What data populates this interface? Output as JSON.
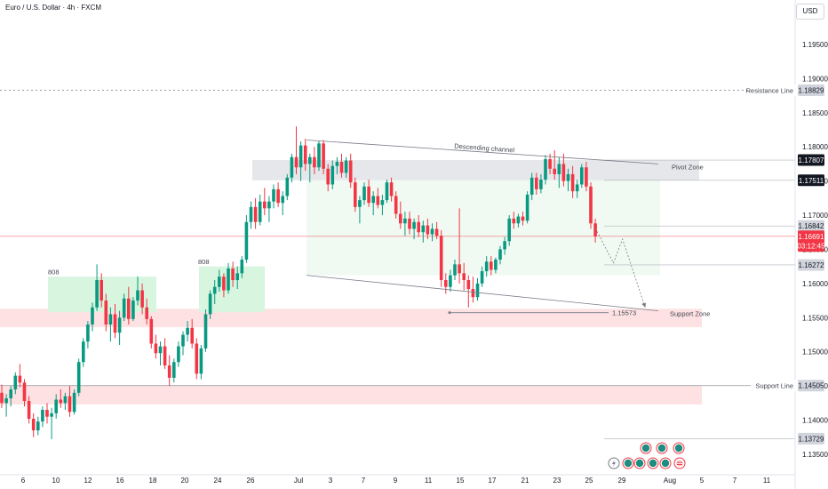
{
  "header": {
    "title": "Euro / U.S. Dollar · 4h · FXCM",
    "currency": "USD"
  },
  "chart_data": {
    "type": "candlestick",
    "x_ticks": [
      "6",
      "10",
      "12",
      "16",
      "18",
      "20",
      "24",
      "26",
      "Jul",
      "3",
      "7",
      "9",
      "11",
      "15",
      "17",
      "21",
      "23",
      "25",
      "29",
      "Aug",
      "5",
      "7",
      "11"
    ],
    "y_ticks": [
      "1.19500",
      "1.19000",
      "1.18500",
      "1.18000",
      "1.17500",
      "1.17000",
      "1.16500",
      "1.16000",
      "1.15500",
      "1.15000",
      "1.14500",
      "1.14000",
      "1.13500"
    ],
    "ylim": [
      1.132,
      1.2015
    ],
    "price_tags": [
      {
        "label": "Resistance Line",
        "value": "1.18829",
        "y": 1.18829,
        "style": "gray"
      },
      {
        "label": "",
        "value": "1.17807",
        "y": 1.17807,
        "style": "dark"
      },
      {
        "label": "",
        "value": "1.17511",
        "y": 1.17511,
        "style": "dark"
      },
      {
        "label": "",
        "value": "1.16842",
        "y": 1.16842,
        "style": "gray"
      },
      {
        "label": "",
        "value": "1.16691",
        "y": 1.16691,
        "style": "red"
      },
      {
        "label": "",
        "value": "03:12:45",
        "y": 1.1655,
        "style": "red"
      },
      {
        "label": "",
        "value": "1.16272",
        "y": 1.16272,
        "style": "gray"
      },
      {
        "label": "Support Line",
        "value": "1.14505",
        "y": 1.14505,
        "style": "gray"
      },
      {
        "label": "",
        "value": "1.13729",
        "y": 1.13729,
        "style": "gray"
      }
    ],
    "annotations": {
      "descending_channel": "Descending channel",
      "pivot_zone": "Pivot Zone",
      "support_zone": "Support Zone",
      "low_value": "1.15573",
      "box1": "808",
      "box2": "808"
    },
    "zones": {
      "pivot": [
        1.17511,
        1.17807
      ],
      "support_zone": [
        1.1536,
        1.1563
      ],
      "support_line_band": [
        1.1423,
        1.1451
      ],
      "resistance": 1.18829,
      "current_price": 1.16691
    },
    "colors": {
      "up": "#089981",
      "down": "#f23645",
      "green_zone": "#d7f5df",
      "red_zone": "#fde1e3",
      "gray_zone": "#e6e7ea"
    },
    "candles": [
      {
        "o": 1.144,
        "h": 1.1452,
        "l": 1.1418,
        "c": 1.1425
      },
      {
        "o": 1.1425,
        "h": 1.1438,
        "l": 1.1405,
        "c": 1.1432
      },
      {
        "o": 1.1432,
        "h": 1.145,
        "l": 1.142,
        "c": 1.1445
      },
      {
        "o": 1.1445,
        "h": 1.147,
        "l": 1.1438,
        "c": 1.1465
      },
      {
        "o": 1.1465,
        "h": 1.1482,
        "l": 1.1448,
        "c": 1.1455
      },
      {
        "o": 1.1455,
        "h": 1.146,
        "l": 1.142,
        "c": 1.1428
      },
      {
        "o": 1.1428,
        "h": 1.1435,
        "l": 1.1395,
        "c": 1.1402
      },
      {
        "o": 1.1402,
        "h": 1.141,
        "l": 1.1375,
        "c": 1.1385
      },
      {
        "o": 1.1385,
        "h": 1.1405,
        "l": 1.1378,
        "c": 1.1398
      },
      {
        "o": 1.1398,
        "h": 1.142,
        "l": 1.139,
        "c": 1.1415
      },
      {
        "o": 1.1415,
        "h": 1.1425,
        "l": 1.1395,
        "c": 1.1405
      },
      {
        "o": 1.1405,
        "h": 1.1418,
        "l": 1.1372,
        "c": 1.141
      },
      {
        "o": 1.141,
        "h": 1.1438,
        "l": 1.1402,
        "c": 1.143
      },
      {
        "o": 1.143,
        "h": 1.1445,
        "l": 1.1418,
        "c": 1.1425
      },
      {
        "o": 1.1425,
        "h": 1.144,
        "l": 1.1415,
        "c": 1.1435
      },
      {
        "o": 1.1435,
        "h": 1.145,
        "l": 1.1405,
        "c": 1.1412
      },
      {
        "o": 1.1412,
        "h": 1.1445,
        "l": 1.1408,
        "c": 1.144
      },
      {
        "o": 1.144,
        "h": 1.149,
        "l": 1.1435,
        "c": 1.1485
      },
      {
        "o": 1.1485,
        "h": 1.152,
        "l": 1.1478,
        "c": 1.1515
      },
      {
        "o": 1.1515,
        "h": 1.1545,
        "l": 1.1505,
        "c": 1.154
      },
      {
        "o": 1.154,
        "h": 1.1572,
        "l": 1.153,
        "c": 1.1565
      },
      {
        "o": 1.1565,
        "h": 1.1628,
        "l": 1.156,
        "c": 1.1605
      },
      {
        "o": 1.1605,
        "h": 1.1615,
        "l": 1.1565,
        "c": 1.1575
      },
      {
        "o": 1.1575,
        "h": 1.1585,
        "l": 1.153,
        "c": 1.154
      },
      {
        "o": 1.154,
        "h": 1.1565,
        "l": 1.1515,
        "c": 1.1555
      },
      {
        "o": 1.1555,
        "h": 1.157,
        "l": 1.152,
        "c": 1.1528
      },
      {
        "o": 1.1528,
        "h": 1.156,
        "l": 1.151,
        "c": 1.155
      },
      {
        "o": 1.155,
        "h": 1.1585,
        "l": 1.1545,
        "c": 1.1578
      },
      {
        "o": 1.1578,
        "h": 1.1595,
        "l": 1.154,
        "c": 1.1548
      },
      {
        "o": 1.1548,
        "h": 1.158,
        "l": 1.1545,
        "c": 1.1575
      },
      {
        "o": 1.1575,
        "h": 1.161,
        "l": 1.1568,
        "c": 1.159
      },
      {
        "o": 1.159,
        "h": 1.16,
        "l": 1.1555,
        "c": 1.1565
      },
      {
        "o": 1.1565,
        "h": 1.1578,
        "l": 1.154,
        "c": 1.1548
      },
      {
        "o": 1.1548,
        "h": 1.1552,
        "l": 1.1505,
        "c": 1.1512
      },
      {
        "o": 1.1512,
        "h": 1.1525,
        "l": 1.149,
        "c": 1.1498
      },
      {
        "o": 1.1498,
        "h": 1.1515,
        "l": 1.148,
        "c": 1.1508
      },
      {
        "o": 1.1508,
        "h": 1.152,
        "l": 1.1475,
        "c": 1.148
      },
      {
        "o": 1.148,
        "h": 1.1495,
        "l": 1.145,
        "c": 1.1462
      },
      {
        "o": 1.1462,
        "h": 1.149,
        "l": 1.1455,
        "c": 1.1485
      },
      {
        "o": 1.1485,
        "h": 1.1515,
        "l": 1.1478,
        "c": 1.1508
      },
      {
        "o": 1.1508,
        "h": 1.153,
        "l": 1.1495,
        "c": 1.1525
      },
      {
        "o": 1.1525,
        "h": 1.1545,
        "l": 1.1515,
        "c": 1.1535
      },
      {
        "o": 1.1535,
        "h": 1.1548,
        "l": 1.1505,
        "c": 1.1512
      },
      {
        "o": 1.1512,
        "h": 1.152,
        "l": 1.146,
        "c": 1.1468
      },
      {
        "o": 1.1468,
        "h": 1.151,
        "l": 1.146,
        "c": 1.1505
      },
      {
        "o": 1.1505,
        "h": 1.1562,
        "l": 1.15,
        "c": 1.1555
      },
      {
        "o": 1.1555,
        "h": 1.159,
        "l": 1.1548,
        "c": 1.1585
      },
      {
        "o": 1.1585,
        "h": 1.1605,
        "l": 1.157,
        "c": 1.1595
      },
      {
        "o": 1.1595,
        "h": 1.162,
        "l": 1.1588,
        "c": 1.161
      },
      {
        "o": 1.161,
        "h": 1.1615,
        "l": 1.158,
        "c": 1.159
      },
      {
        "o": 1.159,
        "h": 1.163,
        "l": 1.1585,
        "c": 1.1622
      },
      {
        "o": 1.1622,
        "h": 1.1632,
        "l": 1.1595,
        "c": 1.1605
      },
      {
        "o": 1.1605,
        "h": 1.1625,
        "l": 1.1592,
        "c": 1.1615
      },
      {
        "o": 1.1615,
        "h": 1.164,
        "l": 1.1608,
        "c": 1.1635
      },
      {
        "o": 1.1635,
        "h": 1.17,
        "l": 1.163,
        "c": 1.169
      },
      {
        "o": 1.169,
        "h": 1.172,
        "l": 1.168,
        "c": 1.1712
      },
      {
        "o": 1.1712,
        "h": 1.1725,
        "l": 1.168,
        "c": 1.169
      },
      {
        "o": 1.169,
        "h": 1.173,
        "l": 1.1685,
        "c": 1.172
      },
      {
        "o": 1.172,
        "h": 1.174,
        "l": 1.17,
        "c": 1.171
      },
      {
        "o": 1.171,
        "h": 1.1728,
        "l": 1.169,
        "c": 1.172
      },
      {
        "o": 1.172,
        "h": 1.1745,
        "l": 1.171,
        "c": 1.1738
      },
      {
        "o": 1.1738,
        "h": 1.1748,
        "l": 1.1712,
        "c": 1.1718
      },
      {
        "o": 1.1718,
        "h": 1.1735,
        "l": 1.17,
        "c": 1.1728
      },
      {
        "o": 1.1728,
        "h": 1.176,
        "l": 1.1722,
        "c": 1.1755
      },
      {
        "o": 1.1755,
        "h": 1.179,
        "l": 1.1748,
        "c": 1.1785
      },
      {
        "o": 1.1785,
        "h": 1.183,
        "l": 1.176,
        "c": 1.177
      },
      {
        "o": 1.177,
        "h": 1.1808,
        "l": 1.175,
        "c": 1.1802
      },
      {
        "o": 1.1802,
        "h": 1.1812,
        "l": 1.1765,
        "c": 1.1775
      },
      {
        "o": 1.1775,
        "h": 1.179,
        "l": 1.1748,
        "c": 1.1785
      },
      {
        "o": 1.1785,
        "h": 1.18,
        "l": 1.176,
        "c": 1.177
      },
      {
        "o": 1.177,
        "h": 1.1808,
        "l": 1.1765,
        "c": 1.1805
      },
      {
        "o": 1.1805,
        "h": 1.181,
        "l": 1.176,
        "c": 1.1768
      },
      {
        "o": 1.1768,
        "h": 1.1775,
        "l": 1.1735,
        "c": 1.1745
      },
      {
        "o": 1.1745,
        "h": 1.178,
        "l": 1.1738,
        "c": 1.1772
      },
      {
        "o": 1.1772,
        "h": 1.1785,
        "l": 1.176,
        "c": 1.1778
      },
      {
        "o": 1.1778,
        "h": 1.179,
        "l": 1.1755,
        "c": 1.1762
      },
      {
        "o": 1.1762,
        "h": 1.1785,
        "l": 1.1755,
        "c": 1.178
      },
      {
        "o": 1.178,
        "h": 1.179,
        "l": 1.174,
        "c": 1.1748
      },
      {
        "o": 1.1748,
        "h": 1.1755,
        "l": 1.1705,
        "c": 1.1712
      },
      {
        "o": 1.1712,
        "h": 1.1728,
        "l": 1.1688,
        "c": 1.1722
      },
      {
        "o": 1.1722,
        "h": 1.1748,
        "l": 1.1715,
        "c": 1.1742
      },
      {
        "o": 1.1742,
        "h": 1.1752,
        "l": 1.1712,
        "c": 1.1718
      },
      {
        "o": 1.1718,
        "h": 1.1735,
        "l": 1.17,
        "c": 1.1728
      },
      {
        "o": 1.1728,
        "h": 1.174,
        "l": 1.171,
        "c": 1.1715
      },
      {
        "o": 1.1715,
        "h": 1.173,
        "l": 1.17,
        "c": 1.1722
      },
      {
        "o": 1.1722,
        "h": 1.1752,
        "l": 1.1718,
        "c": 1.1748
      },
      {
        "o": 1.1748,
        "h": 1.1755,
        "l": 1.172,
        "c": 1.1728
      },
      {
        "o": 1.1728,
        "h": 1.1735,
        "l": 1.1695,
        "c": 1.1702
      },
      {
        "o": 1.1702,
        "h": 1.172,
        "l": 1.168,
        "c": 1.1688
      },
      {
        "o": 1.1688,
        "h": 1.1705,
        "l": 1.167,
        "c": 1.1695
      },
      {
        "o": 1.1695,
        "h": 1.1705,
        "l": 1.1672,
        "c": 1.168
      },
      {
        "o": 1.168,
        "h": 1.1695,
        "l": 1.1665,
        "c": 1.169
      },
      {
        "o": 1.169,
        "h": 1.17,
        "l": 1.1668,
        "c": 1.1675
      },
      {
        "o": 1.1675,
        "h": 1.1692,
        "l": 1.166,
        "c": 1.1685
      },
      {
        "o": 1.1685,
        "h": 1.1695,
        "l": 1.1665,
        "c": 1.1672
      },
      {
        "o": 1.1672,
        "h": 1.1688,
        "l": 1.1662,
        "c": 1.168
      },
      {
        "o": 1.168,
        "h": 1.169,
        "l": 1.1665,
        "c": 1.167
      },
      {
        "o": 1.167,
        "h": 1.1678,
        "l": 1.1595,
        "c": 1.1605
      },
      {
        "o": 1.1605,
        "h": 1.1615,
        "l": 1.1585,
        "c": 1.1595
      },
      {
        "o": 1.1595,
        "h": 1.162,
        "l": 1.1588,
        "c": 1.1612
      },
      {
        "o": 1.1612,
        "h": 1.1635,
        "l": 1.1605,
        "c": 1.1628
      },
      {
        "o": 1.1628,
        "h": 1.171,
        "l": 1.16,
        "c": 1.1615
      },
      {
        "o": 1.1615,
        "h": 1.163,
        "l": 1.159,
        "c": 1.1605
      },
      {
        "o": 1.1605,
        "h": 1.1612,
        "l": 1.1565,
        "c": 1.1592
      },
      {
        "o": 1.1592,
        "h": 1.161,
        "l": 1.1572,
        "c": 1.158
      },
      {
        "o": 1.158,
        "h": 1.1608,
        "l": 1.1575,
        "c": 1.16
      },
      {
        "o": 1.16,
        "h": 1.1625,
        "l": 1.1595,
        "c": 1.1618
      },
      {
        "o": 1.1618,
        "h": 1.164,
        "l": 1.161,
        "c": 1.1632
      },
      {
        "o": 1.1632,
        "h": 1.164,
        "l": 1.1612,
        "c": 1.162
      },
      {
        "o": 1.162,
        "h": 1.1638,
        "l": 1.1615,
        "c": 1.1635
      },
      {
        "o": 1.1635,
        "h": 1.1655,
        "l": 1.1628,
        "c": 1.165
      },
      {
        "o": 1.165,
        "h": 1.1668,
        "l": 1.1642,
        "c": 1.1662
      },
      {
        "o": 1.1662,
        "h": 1.17,
        "l": 1.1655,
        "c": 1.1695
      },
      {
        "o": 1.1695,
        "h": 1.1705,
        "l": 1.168,
        "c": 1.1688
      },
      {
        "o": 1.1688,
        "h": 1.1702,
        "l": 1.1682,
        "c": 1.1698
      },
      {
        "o": 1.1698,
        "h": 1.1705,
        "l": 1.1685,
        "c": 1.1692
      },
      {
        "o": 1.1692,
        "h": 1.1735,
        "l": 1.1688,
        "c": 1.173
      },
      {
        "o": 1.173,
        "h": 1.1762,
        "l": 1.1722,
        "c": 1.1755
      },
      {
        "o": 1.1755,
        "h": 1.1762,
        "l": 1.173,
        "c": 1.1738
      },
      {
        "o": 1.1738,
        "h": 1.176,
        "l": 1.1732,
        "c": 1.1752
      },
      {
        "o": 1.1752,
        "h": 1.1788,
        "l": 1.1745,
        "c": 1.1782
      },
      {
        "o": 1.1782,
        "h": 1.179,
        "l": 1.176,
        "c": 1.1768
      },
      {
        "o": 1.1768,
        "h": 1.1795,
        "l": 1.1752,
        "c": 1.176
      },
      {
        "o": 1.176,
        "h": 1.1785,
        "l": 1.174,
        "c": 1.1775
      },
      {
        "o": 1.1775,
        "h": 1.179,
        "l": 1.1742,
        "c": 1.175
      },
      {
        "o": 1.175,
        "h": 1.1768,
        "l": 1.1735,
        "c": 1.176
      },
      {
        "o": 1.176,
        "h": 1.1772,
        "l": 1.1725,
        "c": 1.1735
      },
      {
        "o": 1.1735,
        "h": 1.1752,
        "l": 1.1725,
        "c": 1.1745
      },
      {
        "o": 1.1745,
        "h": 1.1775,
        "l": 1.174,
        "c": 1.177
      },
      {
        "o": 1.177,
        "h": 1.1778,
        "l": 1.1735,
        "c": 1.1742
      },
      {
        "o": 1.1742,
        "h": 1.1748,
        "l": 1.168,
        "c": 1.1688
      },
      {
        "o": 1.1688,
        "h": 1.1695,
        "l": 1.166,
        "c": 1.1669
      }
    ],
    "projection_path": [
      {
        "i": 131,
        "p": 1.1681
      },
      {
        "i": 135,
        "p": 1.163
      },
      {
        "i": 137,
        "p": 1.1665
      },
      {
        "i": 142,
        "p": 1.1565
      }
    ],
    "bottom_icons": [
      "flash-icon",
      "event-icon",
      "event-icon",
      "event-icon",
      "event-icon",
      "flag-icon",
      "event-icon",
      "event-icon",
      "event-icon"
    ]
  }
}
